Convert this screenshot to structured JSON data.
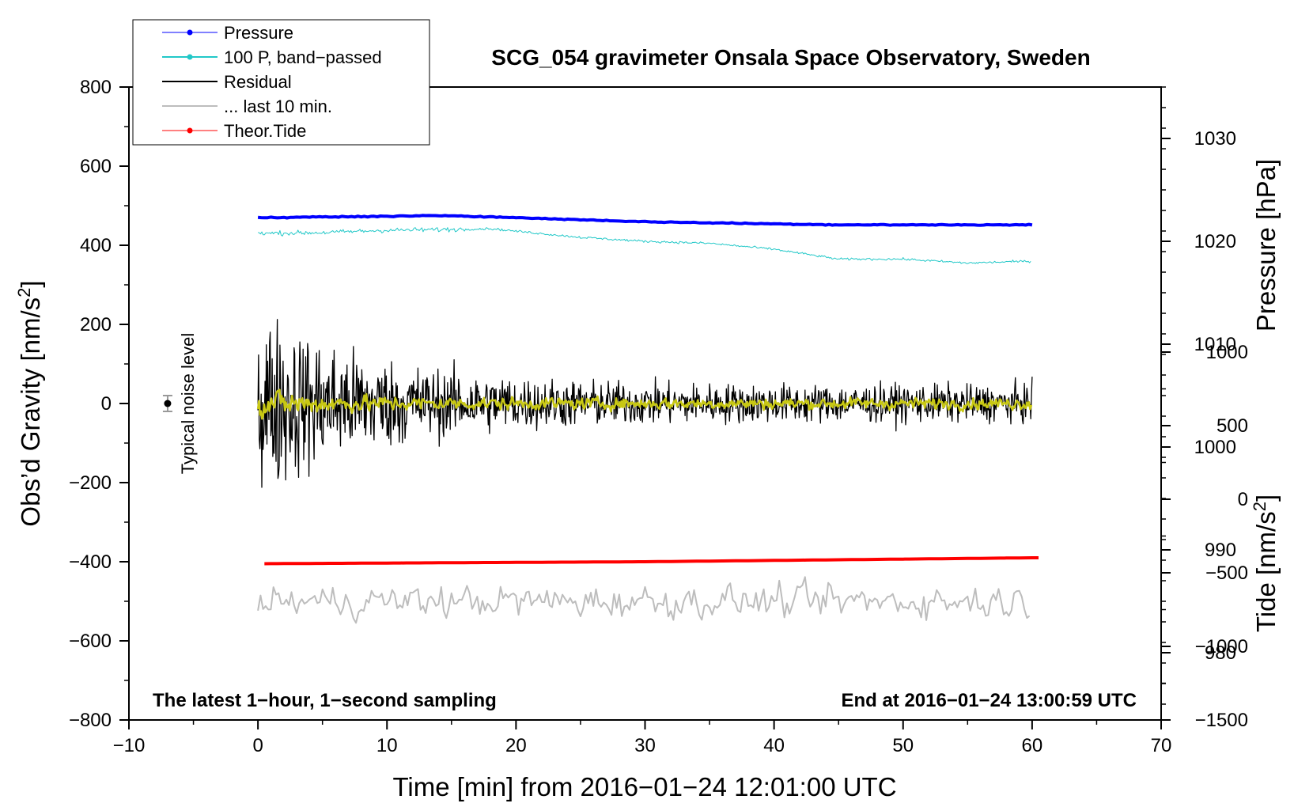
{
  "chart_data": {
    "type": "line",
    "title": "SCG_054 gravimeter Onsala Space Observatory, Sweden",
    "xlabel": "Time [min] from 2016−01−24 12:01:00 UTC",
    "ylabel_left": "Obs’d Gravity [nm/s",
    "ylabel_left_sup": "2",
    "ylabel_left_end": "]",
    "ylabel_right_pressure": "Pressure [hPa]",
    "ylabel_right_tide": "Tide [nm/s",
    "ylabel_right_tide_sup": "2",
    "ylabel_right_tide_end": "]",
    "xlim": [
      -10,
      70
    ],
    "ylim_left": [
      -800,
      800
    ],
    "pressure_axis": {
      "range": [
        975,
        1035
      ],
      "ticks": [
        980,
        990,
        1000,
        1010,
        1020,
        1030
      ],
      "left_equiv": [
        -760,
        800
      ]
    },
    "tide_axis": {
      "range": [
        -1500,
        1000
      ],
      "ticks": [
        -1500,
        -1000,
        -500,
        0,
        500,
        1000
      ],
      "left_equiv": [
        -800,
        130
      ]
    },
    "x_ticks": [
      -10,
      0,
      10,
      20,
      30,
      40,
      50,
      60,
      70
    ],
    "x_tick_labels": [
      "−10",
      "0",
      "10",
      "20",
      "30",
      "40",
      "50",
      "60",
      "70"
    ],
    "y_ticks": [
      -800,
      -600,
      -400,
      -200,
      0,
      200,
      400,
      600,
      800
    ],
    "y_tick_labels": [
      "−800",
      "−600",
      "−400",
      "−200",
      "0",
      "200",
      "400",
      "600",
      "800"
    ],
    "pressure_tick_labels": [
      "980",
      "990",
      "1000",
      "1010",
      "1020",
      "1030"
    ],
    "tide_tick_labels": [
      "−1500",
      "−1000",
      "−500",
      "0",
      "500",
      "1000"
    ],
    "footer_left": "The latest 1−hour, 1−second sampling",
    "footer_right": "End at 2016−01−24 13:00:59 UTC",
    "noise_label": "Typical noise level",
    "noise_marker": {
      "x": -7,
      "y": 0,
      "err": 20
    },
    "legend": [
      {
        "label": "Pressure",
        "color": "#0000ff"
      },
      {
        "label": "100 P, band−passed",
        "color": "#22c8c8"
      },
      {
        "label": "Residual",
        "color": "#000000"
      },
      {
        "label": "... last 10 min.",
        "color": "#bdbdbd"
      },
      {
        "label": "Theor.Tide",
        "color": "#ff0000"
      }
    ],
    "series": [
      {
        "name": "Pressure",
        "axis": "pressure",
        "color": "#0000ff",
        "x": [
          0,
          15,
          30,
          45,
          60
        ],
        "values": [
          1022.3,
          1022.5,
          1021.9,
          1021.6,
          1021.6
        ]
      },
      {
        "name": "100 P, band-passed",
        "axis": "left",
        "color": "#22c8c8",
        "x": [
          0,
          5,
          10,
          15,
          18,
          25,
          30,
          35,
          40,
          45,
          50,
          55,
          60
        ],
        "values": [
          430,
          432,
          438,
          440,
          442,
          420,
          410,
          405,
          390,
          365,
          365,
          355,
          360
        ]
      },
      {
        "name": "Residual",
        "axis": "left",
        "color": "#000000",
        "x": [
          0,
          60
        ],
        "envelope_start": 320,
        "envelope_end": 60
      },
      {
        "name": "... last 10 min.",
        "axis": "left",
        "color": "#bdbdbd",
        "x": [
          0,
          60
        ],
        "center": -500,
        "amplitude": 60
      },
      {
        "name": "Theor.Tide",
        "axis": "left",
        "color": "#ff0000",
        "x": [
          0,
          30,
          60
        ],
        "values": [
          -405,
          -400,
          -390
        ]
      },
      {
        "name": "Residual (smoothed)",
        "axis": "left",
        "color": "#c8c814",
        "x": [
          0,
          60
        ],
        "envelope_start": 70,
        "envelope_end": 25
      }
    ]
  }
}
